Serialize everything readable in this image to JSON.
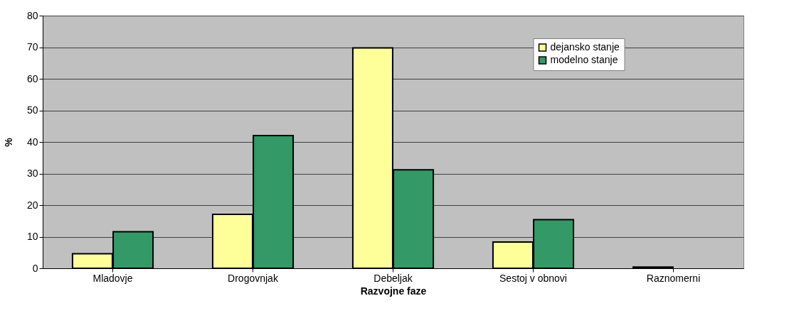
{
  "chart_data": {
    "type": "bar",
    "xlabel": "Razvojne faze",
    "ylabel": "%",
    "categories": [
      "Mladovje",
      "Drogovnjak",
      "Debeljak",
      "Sestoj v obnovi",
      "Raznomerni"
    ],
    "series": [
      {
        "name": "dejansko stanje",
        "color": "#ffff99",
        "values": [
          4.6,
          17.1,
          69.8,
          8.3,
          0.4
        ]
      },
      {
        "name": "modelno stanje",
        "color": "#339966",
        "values": [
          11.6,
          42.0,
          31.2,
          15.4,
          null
        ]
      }
    ],
    "ylim": [
      0,
      80
    ],
    "yticks": [
      0,
      10,
      20,
      30,
      40,
      50,
      60,
      70,
      80
    ],
    "grid": "y",
    "legend": "top right"
  }
}
